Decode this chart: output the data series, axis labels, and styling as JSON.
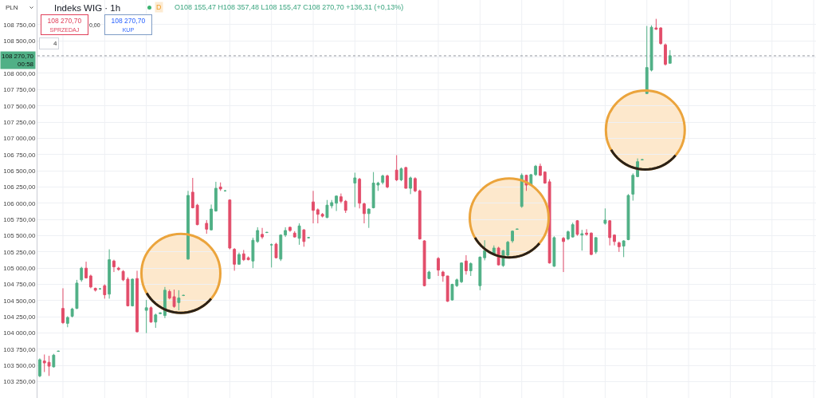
{
  "chart_data": {
    "type": "candlestick",
    "title": "Indeks WIG · 1h",
    "subtitle": "O108 155,47 H108 357,48 L108 155,47 C108 270,70 +136,31 (+0,13%)",
    "ylabel": "PLN",
    "annotations": [
      "D",
      "108 270,70\nSPRZEDAJ",
      "0,00",
      "108 270,70\nKUP",
      "4"
    ],
    "categories": [
      null,
      null,
      null,
      null,
      null,
      null,
      null,
      null,
      null,
      null,
      null,
      null,
      null,
      null,
      null,
      null,
      null,
      null,
      null,
      null,
      null,
      null,
      null,
      null,
      null,
      null,
      null,
      null,
      null,
      null,
      null,
      null,
      null,
      null,
      null,
      null,
      null,
      null,
      null,
      null,
      null,
      null,
      null,
      null,
      null,
      null,
      null,
      null,
      null,
      null,
      null,
      null,
      null,
      null,
      null,
      null,
      null,
      null,
      null,
      null,
      null,
      null,
      null,
      null,
      null,
      null,
      null,
      null,
      null,
      null,
      null,
      null,
      null,
      null,
      null,
      null,
      null,
      null,
      null,
      null,
      null,
      null,
      null,
      null,
      null,
      null,
      null,
      null,
      null,
      null,
      null,
      null,
      null,
      null,
      null,
      null,
      null,
      null,
      null,
      null,
      null,
      null,
      null,
      null,
      null,
      null,
      null,
      null,
      null,
      null,
      null,
      null,
      null,
      null,
      null,
      null,
      null,
      null,
      null,
      null,
      null,
      null,
      null,
      null,
      null,
      null,
      null,
      null,
      null,
      null,
      null,
      null,
      null,
      null,
      null,
      null,
      null,
      null,
      null,
      null,
      null,
      null,
      null,
      null,
      null,
      null,
      null,
      null,
      null,
      null,
      null,
      null,
      null,
      null,
      null,
      null,
      null,
      null,
      null,
      null,
      null,
      null,
      null,
      null,
      null,
      null,
      null,
      null
    ],
    "ohlc": [
      [
        103340,
        103610,
        103320,
        103590
      ],
      [
        103570,
        103670,
        103400,
        103540
      ],
      [
        103550,
        103650,
        103340,
        103490
      ],
      [
        103480,
        103680,
        103470,
        103660
      ],
      [
        103720,
        103730,
        103710,
        103720
      ],
      [
        104380,
        104690,
        104140,
        104160
      ],
      [
        104150,
        104260,
        104090,
        104240
      ],
      [
        104260,
        104390,
        104240,
        104370
      ],
      [
        104380,
        104820,
        104370,
        104770
      ],
      [
        104820,
        105020,
        104790,
        105000
      ],
      [
        105000,
        105100,
        104840,
        104850
      ],
      [
        104880,
        104900,
        104690,
        104710
      ],
      [
        104690,
        104700,
        104640,
        104660
      ],
      [
        104680,
        104690,
        104670,
        104680
      ],
      [
        104730,
        104750,
        104530,
        104590
      ],
      [
        104600,
        105290,
        104530,
        105130
      ],
      [
        105110,
        105130,
        104940,
        105020
      ],
      [
        105000,
        105020,
        104960,
        104980
      ],
      [
        104950,
        104970,
        104800,
        104820
      ],
      [
        104830,
        104860,
        104410,
        104420
      ],
      [
        104420,
        104840,
        104410,
        104830
      ],
      [
        104840,
        104960,
        104010,
        104020
      ],
      null,
      [
        104350,
        104510,
        104000,
        104390
      ],
      [
        104390,
        104410,
        104160,
        104170
      ],
      [
        104170,
        104300,
        104080,
        104280
      ],
      [
        104300,
        104320,
        104290,
        104310
      ],
      [
        104270,
        104710,
        104230,
        104660
      ],
      [
        104640,
        104670,
        104520,
        104540
      ],
      [
        104560,
        104670,
        104390,
        104410
      ],
      [
        104470,
        104660,
        104350,
        104540
      ],
      [
        104580,
        104590,
        104570,
        104580
      ],
      [
        105140,
        106190,
        105130,
        106120
      ],
      [
        106170,
        106390,
        105920,
        105930
      ],
      [
        105970,
        105990,
        105660,
        105670
      ],
      null,
      [
        105690,
        105740,
        105530,
        105600
      ],
      [
        105590,
        105980,
        105580,
        105910
      ],
      [
        105880,
        106330,
        105870,
        106230
      ],
      [
        106250,
        106320,
        106190,
        106220
      ],
      [
        106190,
        106200,
        106180,
        106190
      ],
      [
        106050,
        106060,
        105290,
        105310
      ],
      [
        105290,
        105310,
        104960,
        105060
      ],
      [
        105060,
        105240,
        105050,
        105210
      ],
      [
        105220,
        105280,
        105110,
        105130
      ],
      [
        105160,
        105180,
        105120,
        105130
      ],
      [
        105110,
        105470,
        105000,
        105430
      ],
      [
        105410,
        105630,
        105390,
        105580
      ],
      [
        105520,
        105620,
        105450,
        105480
      ],
      [
        105550,
        105560,
        105540,
        105550
      ],
      [
        105360,
        105380,
        105010,
        105360
      ],
      [
        105370,
        105390,
        105150,
        105160
      ],
      [
        105140,
        105520,
        105110,
        105510
      ],
      [
        105510,
        105630,
        105480,
        105580
      ],
      [
        105630,
        105640,
        105560,
        105580
      ],
      [
        105540,
        105570,
        105470,
        105480
      ],
      [
        105460,
        105690,
        105360,
        105650
      ],
      [
        105590,
        105600,
        105330,
        105410
      ],
      [
        105470,
        105480,
        105460,
        105470
      ],
      [
        106020,
        106190,
        105690,
        105890
      ],
      [
        105900,
        105920,
        105690,
        105830
      ],
      [
        105830,
        105850,
        105780,
        105800
      ],
      [
        105780,
        106050,
        105770,
        105970
      ],
      [
        105960,
        106050,
        105920,
        106010
      ],
      [
        106000,
        106120,
        105880,
        106110
      ],
      [
        106100,
        106150,
        106000,
        106030
      ],
      [
        106030,
        106050,
        105850,
        105890
      ],
      null,
      [
        106310,
        106470,
        105940,
        106390
      ],
      [
        106370,
        106390,
        105920,
        106000
      ],
      [
        105990,
        106010,
        105690,
        105840
      ],
      [
        105840,
        105920,
        105620,
        105910
      ],
      [
        105930,
        106480,
        105920,
        106310
      ],
      [
        106280,
        106330,
        106190,
        106310
      ],
      [
        106320,
        106440,
        106290,
        106420
      ],
      [
        106420,
        106440,
        106230,
        106250
      ],
      null,
      [
        106510,
        106740,
        106340,
        106360
      ],
      [
        106360,
        106550,
        106340,
        106530
      ],
      [
        106550,
        106560,
        106230,
        106230
      ],
      [
        106230,
        106410,
        106140,
        106390
      ],
      [
        106380,
        106400,
        106170,
        106190
      ],
      [
        106190,
        106210,
        105440,
        105450
      ],
      [
        105420,
        105430,
        104720,
        104730
      ],
      [
        104840,
        104960,
        104830,
        104940
      ],
      null,
      [
        105150,
        105170,
        104880,
        104970
      ],
      [
        104940,
        104960,
        104790,
        104880
      ],
      [
        104880,
        104880,
        104480,
        104490
      ],
      [
        104510,
        104760,
        104500,
        104750
      ],
      [
        104730,
        104840,
        104710,
        104820
      ],
      [
        104790,
        105090,
        104770,
        105080
      ],
      [
        105110,
        105200,
        104900,
        104960
      ],
      [
        104960,
        105090,
        104880,
        105070
      ],
      null,
      [
        104730,
        105180,
        104660,
        105170
      ],
      [
        105160,
        105430,
        105120,
        105270
      ],
      null,
      [
        105220,
        105350,
        105200,
        105310
      ],
      [
        105310,
        105330,
        105040,
        105050
      ],
      [
        105040,
        105280,
        105020,
        105270
      ],
      [
        105200,
        105420,
        105180,
        105400
      ],
      [
        105420,
        105580,
        105390,
        105570
      ],
      [
        105600,
        105610,
        105590,
        105600
      ],
      [
        105950,
        106460,
        105930,
        106430
      ],
      [
        106430,
        106440,
        106190,
        106280
      ],
      [
        106280,
        106450,
        106270,
        106440
      ],
      [
        106440,
        106590,
        106420,
        106570
      ],
      [
        106570,
        106610,
        106420,
        106430
      ],
      [
        106480,
        106490,
        106300,
        106310
      ],
      [
        106330,
        106370,
        105070,
        105080
      ],
      [
        105030,
        105490,
        105020,
        105470
      ],
      null,
      [
        105460,
        105480,
        104940,
        105410
      ],
      [
        105450,
        105580,
        105430,
        105560
      ],
      [
        105480,
        105700,
        105470,
        105670
      ],
      [
        105730,
        105740,
        105500,
        105520
      ],
      [
        105510,
        105590,
        105270,
        105530
      ],
      [
        105540,
        105600,
        105500,
        105520
      ],
      [
        105540,
        105550,
        105200,
        105210
      ],
      [
        105250,
        105480,
        105220,
        105470
      ],
      null,
      [
        105690,
        105920,
        105670,
        105740
      ],
      [
        105730,
        105740,
        105350,
        105470
      ],
      [
        105510,
        105520,
        105350,
        105410
      ],
      [
        105390,
        105410,
        105250,
        105330
      ],
      [
        105340,
        105430,
        105170,
        105420
      ],
      [
        105440,
        106140,
        105430,
        106120
      ],
      [
        106140,
        106460,
        106040,
        106430
      ],
      [
        106410,
        106690,
        106400,
        106640
      ],
      [
        106670,
        106680,
        106660,
        106670
      ],
      [
        107690,
        108730,
        107680,
        108090
      ],
      [
        108050,
        108740,
        108030,
        108710
      ],
      [
        108700,
        108840,
        108670,
        108680
      ],
      [
        108700,
        108710,
        108440,
        108460
      ],
      [
        108440,
        108460,
        108120,
        108140
      ],
      [
        108155.47,
        108357.48,
        108155.47,
        108270.7
      ],
      null,
      null,
      null,
      null,
      null,
      null,
      null,
      null,
      null,
      null,
      null,
      null,
      null,
      null,
      null,
      null,
      null,
      null,
      null,
      null,
      null,
      null,
      null,
      null,
      null,
      null,
      null,
      null,
      null,
      null,
      null
    ],
    "colors": [
      "#50b086",
      "#e24d6a",
      "#e24d6a",
      "#50b086",
      "#50b086",
      "#e24d6a",
      "#50b086",
      "#50b086",
      "#50b086",
      "#50b086",
      "#e24d6a",
      "#e24d6a",
      "#e24d6a",
      "#50b086",
      "#e24d6a",
      "#50b086",
      "#e24d6a",
      "#e24d6a",
      "#e24d6a",
      "#e24d6a",
      "#50b086",
      "#e24d6a",
      null,
      "#50b086",
      "#e24d6a",
      "#50b086",
      "#50b086",
      "#50b086",
      "#e24d6a",
      "#e24d6a",
      "#50b086",
      "#50b086",
      "#50b086",
      "#e24d6a",
      "#e24d6a",
      null,
      "#e24d6a",
      "#50b086",
      "#50b086",
      "#e24d6a",
      "#50b086",
      "#e24d6a",
      "#e24d6a",
      "#50b086",
      "#e24d6a",
      "#e24d6a",
      "#50b086",
      "#50b086",
      "#e24d6a",
      "#50b086",
      "#50b086",
      "#e24d6a",
      "#50b086",
      "#50b086",
      "#e24d6a",
      "#e24d6a",
      "#50b086",
      "#e24d6a",
      "#50b086",
      "#e24d6a",
      "#e24d6a",
      "#e24d6a",
      "#50b086",
      "#50b086",
      "#50b086",
      "#e24d6a",
      "#e24d6a",
      null,
      "#50b086",
      "#e24d6a",
      "#e24d6a",
      "#50b086",
      "#50b086",
      "#50b086",
      "#50b086",
      "#e24d6a",
      null,
      "#e24d6a",
      "#50b086",
      "#e24d6a",
      "#50b086",
      "#e24d6a",
      "#e24d6a",
      "#e24d6a",
      "#50b086",
      null,
      "#e24d6a",
      "#e24d6a",
      "#e24d6a",
      "#50b086",
      "#50b086",
      "#50b086",
      "#e24d6a",
      "#50b086",
      null,
      "#50b086",
      "#50b086",
      null,
      "#50b086",
      "#e24d6a",
      "#50b086",
      "#50b086",
      "#50b086",
      "#50b086",
      "#50b086",
      "#e24d6a",
      "#50b086",
      "#50b086",
      "#e24d6a",
      "#e24d6a",
      "#e24d6a",
      "#50b086",
      null,
      "#e24d6a",
      "#50b086",
      "#50b086",
      "#e24d6a",
      "#50b086",
      "#e24d6a",
      "#e24d6a",
      "#50b086",
      null,
      "#50b086",
      "#e24d6a",
      "#e24d6a",
      "#e24d6a",
      "#50b086",
      "#50b086",
      "#50b086",
      "#50b086",
      "#50b086",
      "#50b086",
      "#50b086",
      "#e24d6a",
      "#e24d6a",
      "#e24d6a",
      "#50b086",
      null,
      null,
      null,
      null,
      null,
      null,
      null,
      null,
      null,
      null,
      null,
      null,
      null,
      null,
      null,
      null,
      null,
      null,
      null,
      null,
      null,
      null,
      null,
      null,
      null,
      null,
      null,
      null,
      null,
      null,
      null
    ],
    "ylim": [
      103000,
      109130
    ],
    "yticks": [
      {
        "value": 103250,
        "label": "103 250,00"
      },
      {
        "value": 103500,
        "label": "103 500,00"
      },
      {
        "value": 103750,
        "label": "103 750,00"
      },
      {
        "value": 104000,
        "label": "104 000,00"
      },
      {
        "value": 104250,
        "label": "104 250,00"
      },
      {
        "value": 104500,
        "label": "104 500,00"
      },
      {
        "value": 104750,
        "label": "104 750,00"
      },
      {
        "value": 105000,
        "label": "105 000,00"
      },
      {
        "value": 105250,
        "label": "105 250,00"
      },
      {
        "value": 105500,
        "label": "105 500,00"
      },
      {
        "value": 105750,
        "label": "105 750,00"
      },
      {
        "value": 106000,
        "label": "106 000,00"
      },
      {
        "value": 106250,
        "label": "106 250,00"
      },
      {
        "value": 106500,
        "label": "106 500,00"
      },
      {
        "value": 106750,
        "label": "106 750,00"
      },
      {
        "value": 107000,
        "label": "107 000,00"
      },
      {
        "value": 107250,
        "label": "107 250,00"
      },
      {
        "value": 107500,
        "label": "107 500,00"
      },
      {
        "value": 107750,
        "label": "107 750,00"
      },
      {
        "value": 108000,
        "label": "108 000,00"
      },
      {
        "value": 108250,
        "label": null
      },
      {
        "value": 108500,
        "label": "108 500,00"
      },
      {
        "value": 108750,
        "label": "108 750,00"
      }
    ],
    "grid": true,
    "tick_labels": "y",
    "ref_lines": [
      {
        "axis": "y",
        "value": 108270.7,
        "label": "108 270,70\n00:58",
        "color": "#9598a1",
        "line_style": "dotted"
      }
    ]
  }
}
